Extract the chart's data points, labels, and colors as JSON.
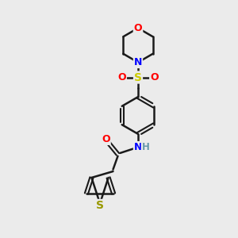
{
  "bg_color": "#ebebeb",
  "bond_color": "#1a1a1a",
  "atom_colors": {
    "O": "#ff0000",
    "N": "#0000ff",
    "S_sulfonyl": "#cccc00",
    "S_thio": "#999900",
    "H": "#6699aa",
    "C": "#1a1a1a"
  },
  "figsize": [
    3.0,
    3.0
  ],
  "dpi": 100
}
